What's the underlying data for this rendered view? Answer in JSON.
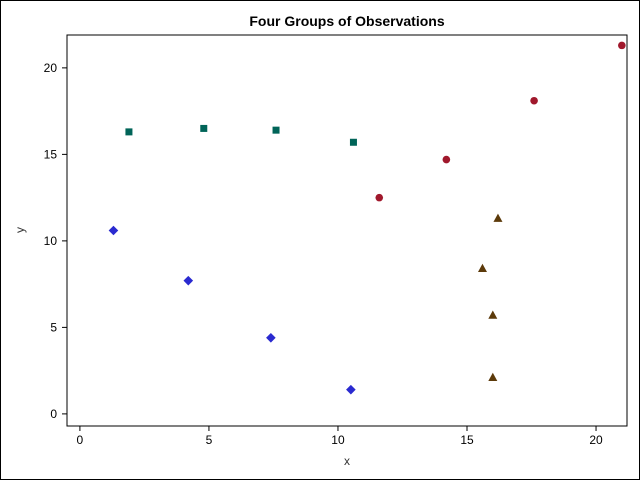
{
  "chart_data": {
    "type": "scatter",
    "title": "Four Groups of Observations",
    "xlabel": "x",
    "ylabel": "y",
    "xlim": [
      -0.5,
      21.2
    ],
    "ylim": [
      -0.7,
      21.9
    ],
    "xticks": [
      0,
      5,
      10,
      15,
      20
    ],
    "yticks": [
      0,
      5,
      10,
      15,
      20
    ],
    "grid": false,
    "legend": "none",
    "series": [
      {
        "marker": "square",
        "color": "#006458",
        "points": [
          [
            1.9,
            16.3
          ],
          [
            4.8,
            16.5
          ],
          [
            7.6,
            16.4
          ],
          [
            10.6,
            15.7
          ]
        ]
      },
      {
        "marker": "circle",
        "color": "#A0182C",
        "points": [
          [
            11.6,
            12.5
          ],
          [
            14.2,
            14.7
          ],
          [
            17.6,
            18.1
          ],
          [
            21.0,
            21.3
          ]
        ]
      },
      {
        "marker": "diamond",
        "color": "#2A2AD0",
        "points": [
          [
            1.3,
            10.6
          ],
          [
            4.2,
            7.7
          ],
          [
            7.4,
            4.4
          ],
          [
            10.5,
            1.4
          ]
        ]
      },
      {
        "marker": "triangle",
        "color": "#5C3A0A",
        "points": [
          [
            16.2,
            11.3
          ],
          [
            15.6,
            8.4
          ],
          [
            16.0,
            5.7
          ],
          [
            16.0,
            2.1
          ]
        ]
      }
    ]
  }
}
